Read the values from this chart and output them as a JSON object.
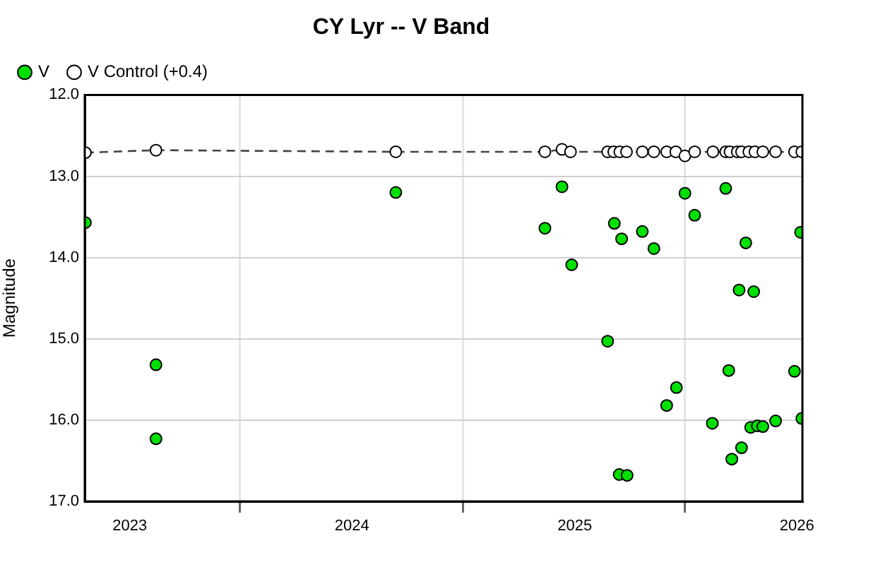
{
  "chart_data": {
    "type": "scatter",
    "title": "CY Lyr -- V Band",
    "ylabel": "Magnitude",
    "legend": "top left",
    "grid": true,
    "marker": "circle",
    "xlim": [
      "2022-10-19",
      "2026-01-10"
    ],
    "ylim": [
      17,
      12
    ],
    "yticks": [
      {
        "value": 12,
        "label": "12.0"
      },
      {
        "value": 13,
        "label": "13.0"
      },
      {
        "value": 14,
        "label": "14.0"
      },
      {
        "value": 15,
        "label": "15.0"
      },
      {
        "value": 16,
        "label": "16.0"
      },
      {
        "value": 17,
        "label": "17.0"
      }
    ],
    "xticks": [
      {
        "value": "2023",
        "label": "2023"
      },
      {
        "value": "2023-07",
        "label": null
      },
      {
        "value": "2024",
        "label": "2024"
      },
      {
        "value": "2024-07",
        "label": null
      },
      {
        "value": "2025",
        "label": "2025"
      },
      {
        "value": "2025-07",
        "label": null
      },
      {
        "value": "2026",
        "label": "2026"
      }
    ],
    "series": [
      {
        "name": "V",
        "color": "#00e000",
        "x": [
          "2022-10-20",
          "2023-02-13",
          "2023-02-13",
          "2024-03-13",
          "2024-11-13",
          "2024-12-11",
          "2024-12-27",
          "2025-02-24",
          "2025-03-07",
          "2025-03-15",
          "2025-03-19",
          "2025-03-28",
          "2025-04-22",
          "2025-05-11",
          "2025-06-01",
          "2025-06-17",
          "2025-07-01",
          "2025-07-17",
          "2025-08-15",
          "2025-09-06",
          "2025-09-11",
          "2025-09-16",
          "2025-09-28",
          "2025-10-02",
          "2025-10-09",
          "2025-10-17",
          "2025-10-22",
          "2025-10-28",
          "2025-11-06",
          "2025-11-27",
          "2025-12-28",
          "2026-01-07",
          "2026-01-09"
        ],
        "values": [
          13.57,
          15.32,
          16.23,
          13.2,
          13.64,
          13.13,
          14.09,
          15.03,
          13.58,
          16.67,
          13.77,
          16.68,
          13.68,
          13.89,
          15.82,
          15.6,
          13.21,
          13.48,
          16.04,
          13.15,
          15.39,
          16.48,
          14.4,
          16.34,
          13.82,
          16.09,
          14.42,
          16.07,
          16.08,
          16.01,
          15.4,
          13.69,
          15.98
        ]
      },
      {
        "name": "V Control (+0.4)",
        "type": "line",
        "line_style": "dashed",
        "color": "#ffffff",
        "x": [
          "2022-10-20",
          "2023-02-13",
          "2024-03-13",
          "2024-11-13",
          "2024-12-11",
          "2024-12-25",
          "2025-02-24",
          "2025-03-06",
          "2025-03-16",
          "2025-03-27",
          "2025-04-22",
          "2025-05-11",
          "2025-06-01",
          "2025-06-16",
          "2025-07-01",
          "2025-07-17",
          "2025-08-16",
          "2025-09-06",
          "2025-09-13",
          "2025-09-25",
          "2025-10-02",
          "2025-10-14",
          "2025-10-24",
          "2025-11-06",
          "2025-11-27",
          "2025-12-28",
          "2026-01-09"
        ],
        "values": [
          12.71,
          12.68,
          12.7,
          12.7,
          12.67,
          12.7,
          12.7,
          12.7,
          12.7,
          12.7,
          12.7,
          12.7,
          12.7,
          12.7,
          12.75,
          12.7,
          12.7,
          12.7,
          12.7,
          12.7,
          12.7,
          12.7,
          12.7,
          12.7,
          12.7,
          12.7,
          12.7
        ]
      }
    ]
  }
}
